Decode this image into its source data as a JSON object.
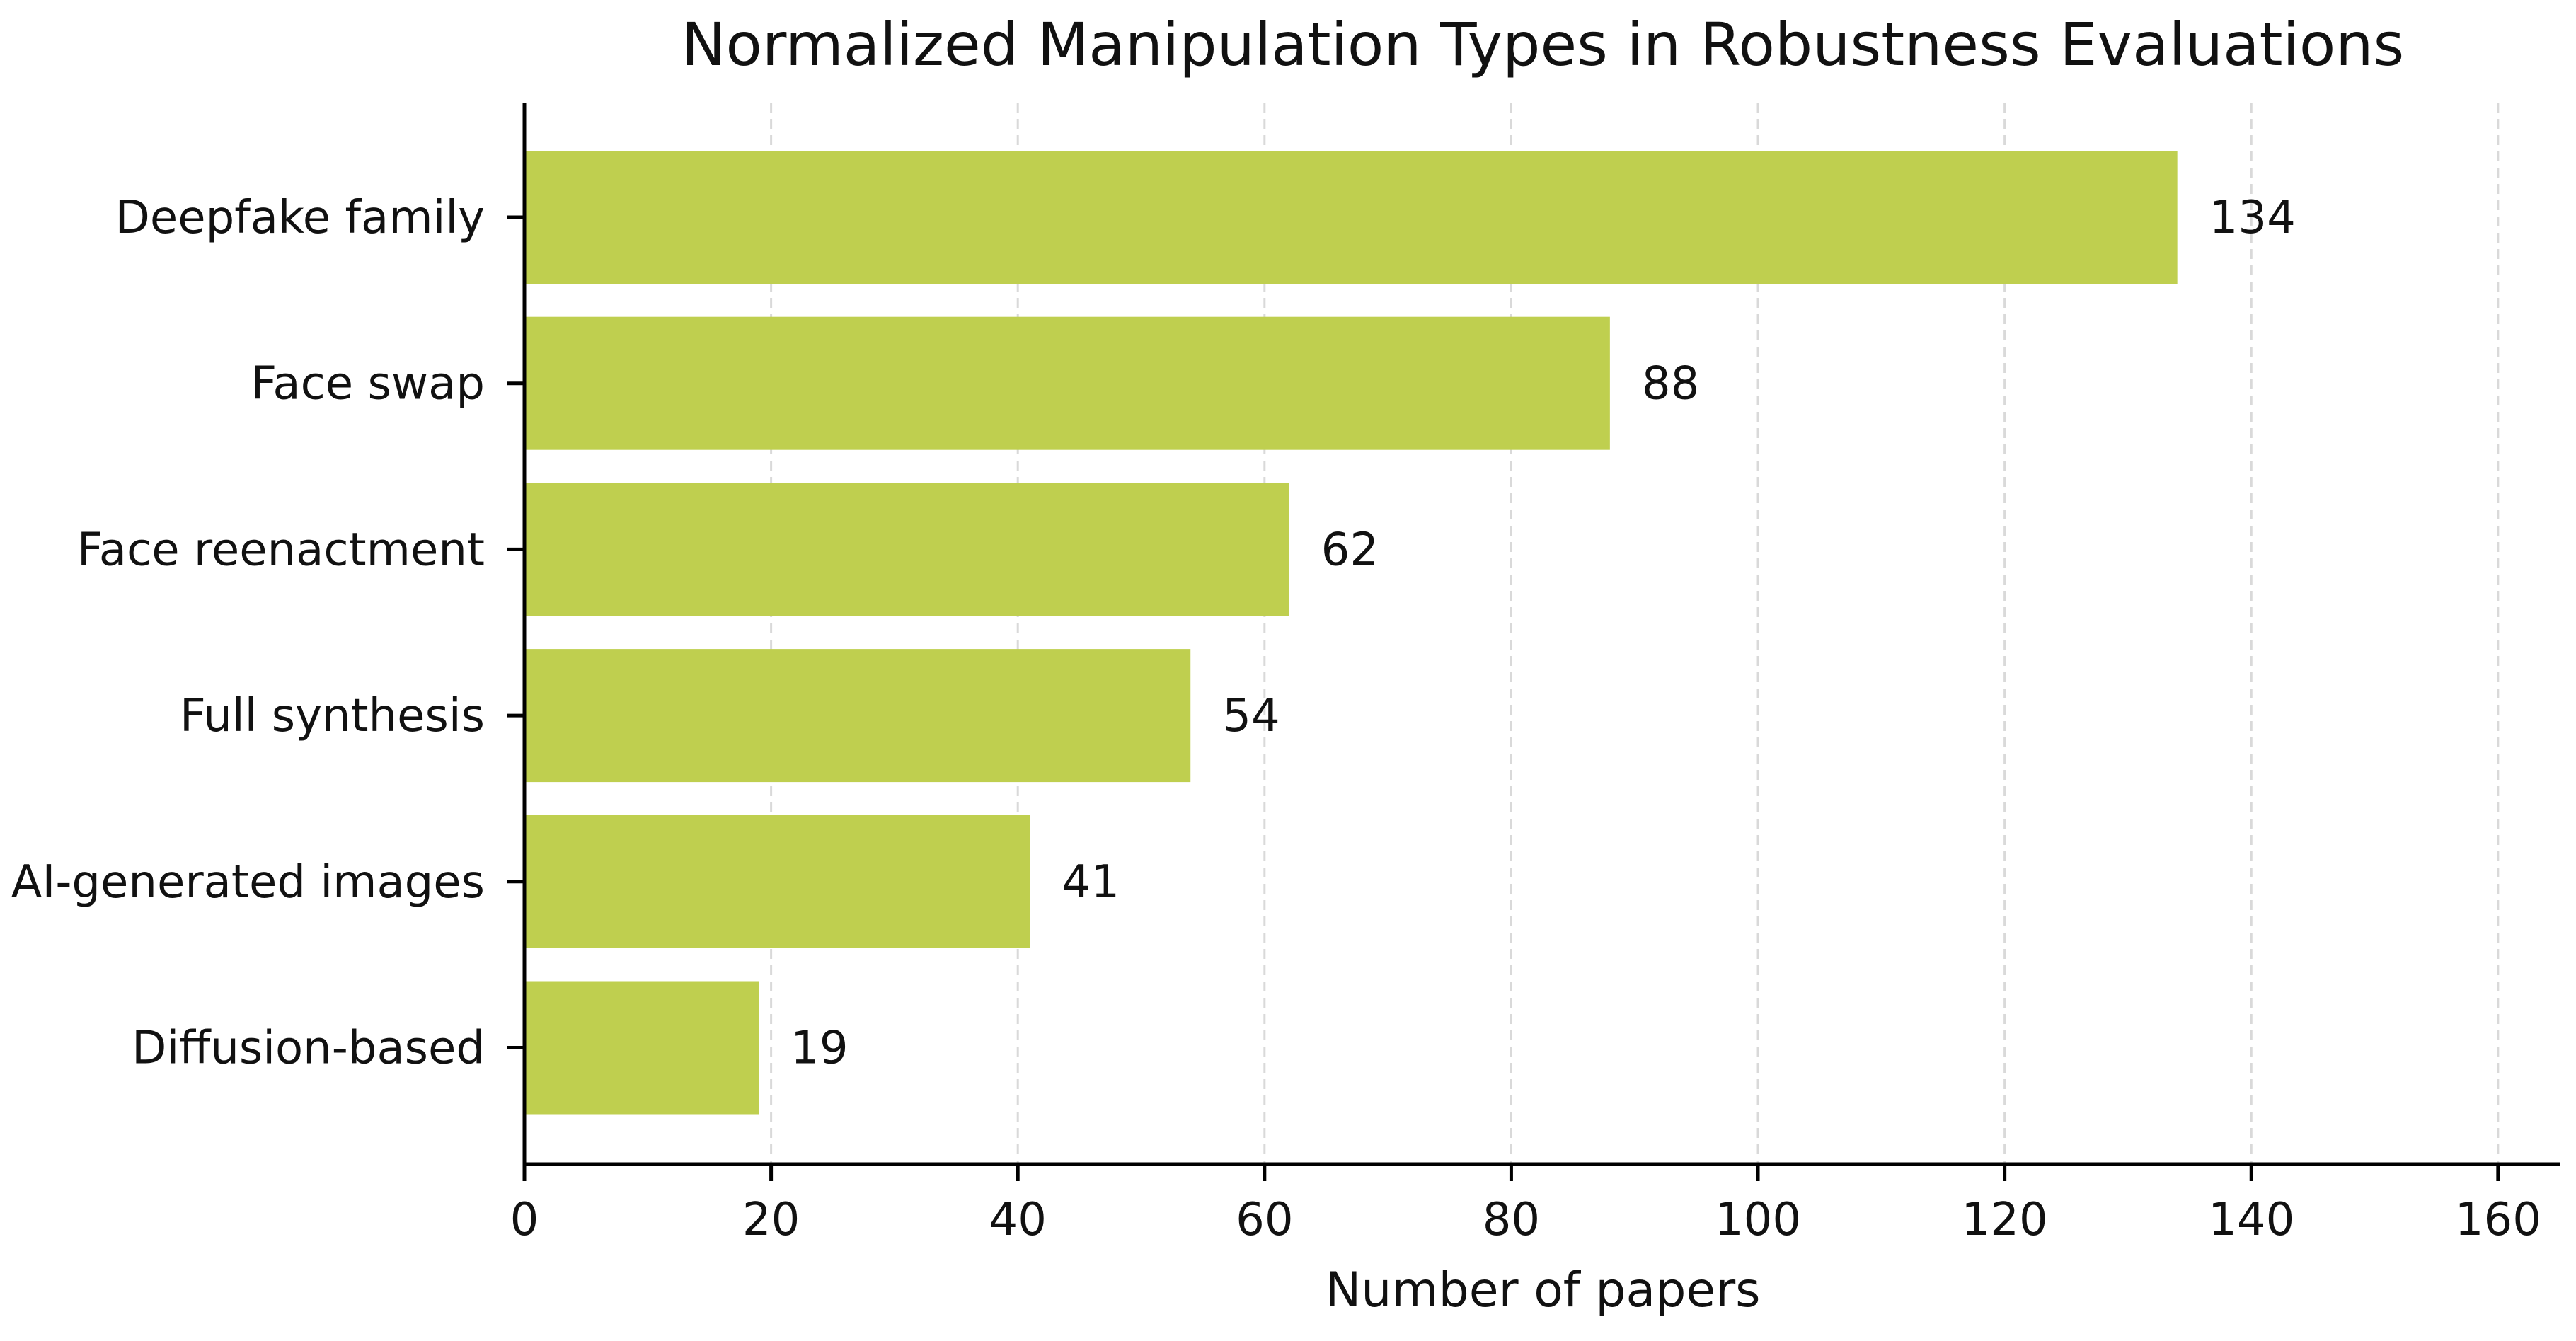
{
  "chart_data": {
    "type": "bar",
    "orientation": "horizontal",
    "title": "Normalized Manipulation Types in Robustness Evaluations",
    "xlabel": "Number of papers",
    "ylabel": "",
    "categories": [
      "Deepfake family",
      "Face swap",
      "Face reenactment",
      "Full synthesis",
      "AI-generated images",
      "Diffusion-based"
    ],
    "values": [
      134,
      88,
      62,
      54,
      41,
      19
    ],
    "value_labels": [
      "134",
      "88",
      "62",
      "54",
      "41",
      "19"
    ],
    "xlim": [
      0,
      165
    ],
    "xticks": [
      0,
      20,
      40,
      60,
      80,
      100,
      120,
      140,
      160
    ],
    "xtick_labels": [
      "0",
      "20",
      "40",
      "60",
      "80",
      "100",
      "120",
      "140",
      "160"
    ],
    "grid": "vertical dashed",
    "legend": "none",
    "bar_color": "#bfcf4f",
    "grid_color": "#d9d9d9",
    "axis_color": "#000000"
  }
}
